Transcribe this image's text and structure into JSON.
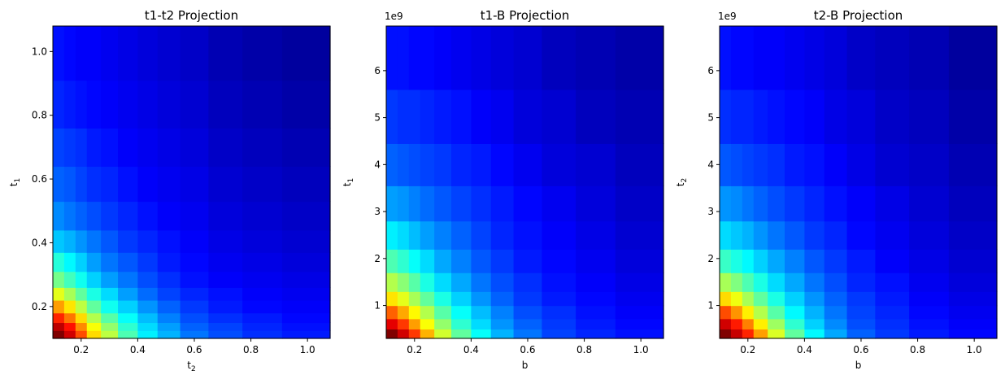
{
  "chart_data": [
    {
      "type": "heatmap",
      "title": "t1-t2 Projection",
      "xlabel": "t",
      "xlabel_sub": "2",
      "ylabel": "t",
      "ylabel_sub": "1",
      "x_edges": [
        0.1,
        0.14,
        0.18,
        0.22,
        0.27,
        0.33,
        0.4,
        0.47,
        0.55,
        0.65,
        0.77,
        0.91,
        1.08
      ],
      "y_edges": [
        0.1,
        0.125,
        0.15,
        0.18,
        0.22,
        0.26,
        0.31,
        0.37,
        0.44,
        0.53,
        0.64,
        0.76,
        0.91,
        1.08
      ],
      "xlim": [
        0.1,
        1.08
      ],
      "ylim": [
        0.1,
        1.08
      ],
      "xticks": [
        0.2,
        0.4,
        0.6,
        0.8,
        1.0
      ],
      "yticks": [
        0.2,
        0.4,
        0.6,
        0.8,
        1.0
      ],
      "xtick_labels": [
        "0.2",
        "0.4",
        "0.6",
        "0.8",
        "1.0"
      ],
      "ytick_labels": [
        "0.2",
        "0.4",
        "0.6",
        "0.8",
        "1.0"
      ],
      "offset_label": "",
      "colormap": "jet",
      "values": [
        [
          1.0,
          0.92,
          0.8,
          0.66,
          0.56,
          0.45,
          0.36,
          0.3,
          0.24,
          0.2,
          0.17,
          0.15
        ],
        [
          0.94,
          0.86,
          0.74,
          0.62,
          0.52,
          0.42,
          0.34,
          0.28,
          0.22,
          0.19,
          0.16,
          0.14
        ],
        [
          0.84,
          0.76,
          0.66,
          0.55,
          0.46,
          0.38,
          0.31,
          0.25,
          0.2,
          0.17,
          0.15,
          0.13
        ],
        [
          0.72,
          0.65,
          0.56,
          0.47,
          0.39,
          0.33,
          0.27,
          0.22,
          0.18,
          0.15,
          0.13,
          0.12
        ],
        [
          0.6,
          0.54,
          0.47,
          0.4,
          0.34,
          0.28,
          0.23,
          0.19,
          0.16,
          0.14,
          0.12,
          0.11
        ],
        [
          0.49,
          0.44,
          0.39,
          0.33,
          0.28,
          0.24,
          0.2,
          0.17,
          0.14,
          0.12,
          0.11,
          0.1
        ],
        [
          0.41,
          0.37,
          0.33,
          0.28,
          0.24,
          0.21,
          0.18,
          0.15,
          0.13,
          0.11,
          0.1,
          0.09
        ],
        [
          0.32,
          0.3,
          0.27,
          0.24,
          0.21,
          0.18,
          0.16,
          0.14,
          0.12,
          0.1,
          0.09,
          0.08
        ],
        [
          0.26,
          0.24,
          0.22,
          0.2,
          0.18,
          0.16,
          0.14,
          0.12,
          0.11,
          0.09,
          0.08,
          0.07
        ],
        [
          0.22,
          0.21,
          0.19,
          0.17,
          0.16,
          0.14,
          0.12,
          0.11,
          0.1,
          0.08,
          0.07,
          0.06
        ],
        [
          0.19,
          0.18,
          0.17,
          0.15,
          0.14,
          0.12,
          0.11,
          0.1,
          0.09,
          0.07,
          0.06,
          0.05
        ],
        [
          0.16,
          0.15,
          0.14,
          0.13,
          0.12,
          0.11,
          0.1,
          0.09,
          0.08,
          0.06,
          0.05,
          0.04
        ],
        [
          0.14,
          0.13,
          0.12,
          0.12,
          0.11,
          0.1,
          0.09,
          0.08,
          0.07,
          0.05,
          0.04,
          0.03
        ]
      ]
    },
    {
      "type": "heatmap",
      "title": "t1-B Projection",
      "xlabel": "b",
      "xlabel_sub": "",
      "ylabel": "t",
      "ylabel_sub": "1",
      "x_edges": [
        0.1,
        0.14,
        0.18,
        0.22,
        0.27,
        0.33,
        0.4,
        0.47,
        0.55,
        0.65,
        0.77,
        0.91,
        1.08
      ],
      "y_edges": [
        0.3,
        0.5,
        0.72,
        1.0,
        1.3,
        1.7,
        2.2,
        2.8,
        3.55,
        4.45,
        5.6,
        6.95
      ],
      "xlim": [
        0.1,
        1.08
      ],
      "ylim": [
        0.3,
        6.95
      ],
      "xticks": [
        0.2,
        0.4,
        0.6,
        0.8,
        1.0
      ],
      "yticks": [
        1,
        2,
        3,
        4,
        5,
        6
      ],
      "xtick_labels": [
        "0.2",
        "0.4",
        "0.6",
        "0.8",
        "1.0"
      ],
      "ytick_labels": [
        "1",
        "2",
        "3",
        "4",
        "5",
        "6"
      ],
      "offset_label": "1e9",
      "colormap": "jet",
      "values": [
        [
          1.0,
          0.92,
          0.82,
          0.7,
          0.58,
          0.47,
          0.38,
          0.3,
          0.24,
          0.19,
          0.16,
          0.14
        ],
        [
          0.9,
          0.82,
          0.72,
          0.62,
          0.52,
          0.42,
          0.34,
          0.27,
          0.22,
          0.18,
          0.15,
          0.13
        ],
        [
          0.78,
          0.71,
          0.63,
          0.55,
          0.46,
          0.38,
          0.31,
          0.25,
          0.2,
          0.17,
          0.14,
          0.12
        ],
        [
          0.65,
          0.6,
          0.54,
          0.47,
          0.4,
          0.33,
          0.27,
          0.22,
          0.18,
          0.15,
          0.13,
          0.11
        ],
        [
          0.55,
          0.51,
          0.46,
          0.4,
          0.34,
          0.29,
          0.24,
          0.2,
          0.17,
          0.14,
          0.12,
          0.1
        ],
        [
          0.45,
          0.42,
          0.38,
          0.34,
          0.29,
          0.25,
          0.21,
          0.18,
          0.15,
          0.13,
          0.11,
          0.09
        ],
        [
          0.36,
          0.34,
          0.31,
          0.28,
          0.25,
          0.22,
          0.19,
          0.16,
          0.14,
          0.12,
          0.1,
          0.08
        ],
        [
          0.28,
          0.27,
          0.25,
          0.23,
          0.21,
          0.19,
          0.17,
          0.15,
          0.13,
          0.11,
          0.09,
          0.07
        ],
        [
          0.22,
          0.21,
          0.2,
          0.19,
          0.18,
          0.16,
          0.15,
          0.13,
          0.11,
          0.09,
          0.08,
          0.06
        ],
        [
          0.18,
          0.17,
          0.17,
          0.16,
          0.15,
          0.14,
          0.12,
          0.11,
          0.09,
          0.08,
          0.06,
          0.05
        ],
        [
          0.14,
          0.14,
          0.13,
          0.13,
          0.12,
          0.11,
          0.1,
          0.09,
          0.08,
          0.06,
          0.05,
          0.04
        ]
      ]
    },
    {
      "type": "heatmap",
      "title": "t2-B Projection",
      "xlabel": "b",
      "xlabel_sub": "",
      "ylabel": "t",
      "ylabel_sub": "2",
      "x_edges": [
        0.1,
        0.14,
        0.18,
        0.22,
        0.27,
        0.33,
        0.4,
        0.47,
        0.55,
        0.65,
        0.77,
        0.91,
        1.08
      ],
      "y_edges": [
        0.3,
        0.5,
        0.72,
        1.0,
        1.3,
        1.7,
        2.2,
        2.8,
        3.55,
        4.45,
        5.6,
        6.95
      ],
      "xlim": [
        0.1,
        1.08
      ],
      "ylim": [
        0.3,
        6.95
      ],
      "xticks": [
        0.2,
        0.4,
        0.6,
        0.8,
        1.0
      ],
      "yticks": [
        1,
        2,
        3,
        4,
        5,
        6
      ],
      "xtick_labels": [
        "0.2",
        "0.4",
        "0.6",
        "0.8",
        "1.0"
      ],
      "ytick_labels": [
        "1",
        "2",
        "3",
        "4",
        "5",
        "6"
      ],
      "offset_label": "1e9",
      "colormap": "jet",
      "values": [
        [
          1.0,
          0.93,
          0.84,
          0.72,
          0.59,
          0.47,
          0.37,
          0.29,
          0.22,
          0.18,
          0.15,
          0.13
        ],
        [
          0.92,
          0.85,
          0.75,
          0.64,
          0.53,
          0.42,
          0.33,
          0.26,
          0.2,
          0.17,
          0.14,
          0.12
        ],
        [
          0.8,
          0.73,
          0.64,
          0.55,
          0.46,
          0.37,
          0.3,
          0.24,
          0.19,
          0.16,
          0.13,
          0.11
        ],
        [
          0.66,
          0.61,
          0.54,
          0.47,
          0.4,
          0.33,
          0.27,
          0.22,
          0.18,
          0.15,
          0.12,
          0.1
        ],
        [
          0.54,
          0.5,
          0.45,
          0.4,
          0.34,
          0.29,
          0.24,
          0.2,
          0.16,
          0.14,
          0.11,
          0.09
        ],
        [
          0.43,
          0.4,
          0.37,
          0.33,
          0.29,
          0.25,
          0.21,
          0.18,
          0.15,
          0.12,
          0.1,
          0.08
        ],
        [
          0.34,
          0.32,
          0.3,
          0.27,
          0.24,
          0.21,
          0.18,
          0.16,
          0.13,
          0.11,
          0.09,
          0.07
        ],
        [
          0.27,
          0.26,
          0.24,
          0.22,
          0.2,
          0.18,
          0.16,
          0.14,
          0.12,
          0.1,
          0.08,
          0.06
        ],
        [
          0.21,
          0.2,
          0.19,
          0.18,
          0.17,
          0.15,
          0.14,
          0.12,
          0.1,
          0.08,
          0.07,
          0.05
        ],
        [
          0.17,
          0.16,
          0.16,
          0.15,
          0.14,
          0.13,
          0.12,
          0.1,
          0.09,
          0.07,
          0.06,
          0.04
        ],
        [
          0.14,
          0.13,
          0.13,
          0.12,
          0.12,
          0.11,
          0.1,
          0.09,
          0.07,
          0.06,
          0.05,
          0.03
        ]
      ]
    }
  ]
}
